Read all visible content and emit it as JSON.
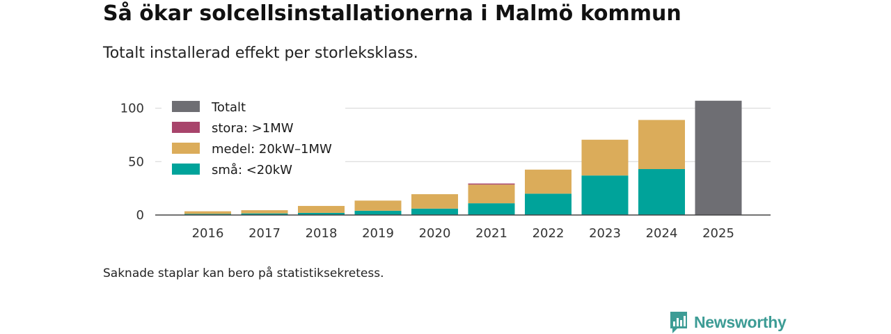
{
  "title": "Så ökar solcellsinstallationerna i Malmö kommun",
  "subtitle": "Totalt installerad effekt per storleksklass.",
  "footnote": "Saknade staplar kan bero på statistiksekretess.",
  "brand": {
    "name": "Newsworthy"
  },
  "chart_data": {
    "type": "bar",
    "stacked": true,
    "categories": [
      "2016",
      "2017",
      "2018",
      "2019",
      "2020",
      "2021",
      "2022",
      "2023",
      "2024",
      "2025"
    ],
    "series": [
      {
        "key": "sma",
        "name": "små: <20kW",
        "color": "#00a39a",
        "values": [
          1,
          1.5,
          2,
          4,
          6,
          11,
          20,
          37,
          43,
          null
        ]
      },
      {
        "key": "medel",
        "name": "medel: 20kW–1MW",
        "color": "#dbac5a",
        "values": [
          2.5,
          3,
          6.5,
          9.5,
          13.5,
          17.5,
          22.5,
          33.5,
          46,
          null
        ]
      },
      {
        "key": "stora",
        "name": "stora: >1MW",
        "color": "#a8446b",
        "values": [
          null,
          null,
          null,
          null,
          null,
          1,
          null,
          null,
          null,
          null
        ]
      },
      {
        "key": "totalt",
        "name": "Totalt",
        "color": "#6e6e73",
        "values": [
          null,
          null,
          null,
          null,
          null,
          null,
          null,
          null,
          null,
          107
        ]
      }
    ],
    "legend_order": [
      "totalt",
      "stora",
      "medel",
      "sma"
    ],
    "y_ticks": [
      "0",
      "50",
      "100"
    ],
    "ylim": [
      0,
      115
    ],
    "legend_position": "top-left",
    "grid": true
  }
}
